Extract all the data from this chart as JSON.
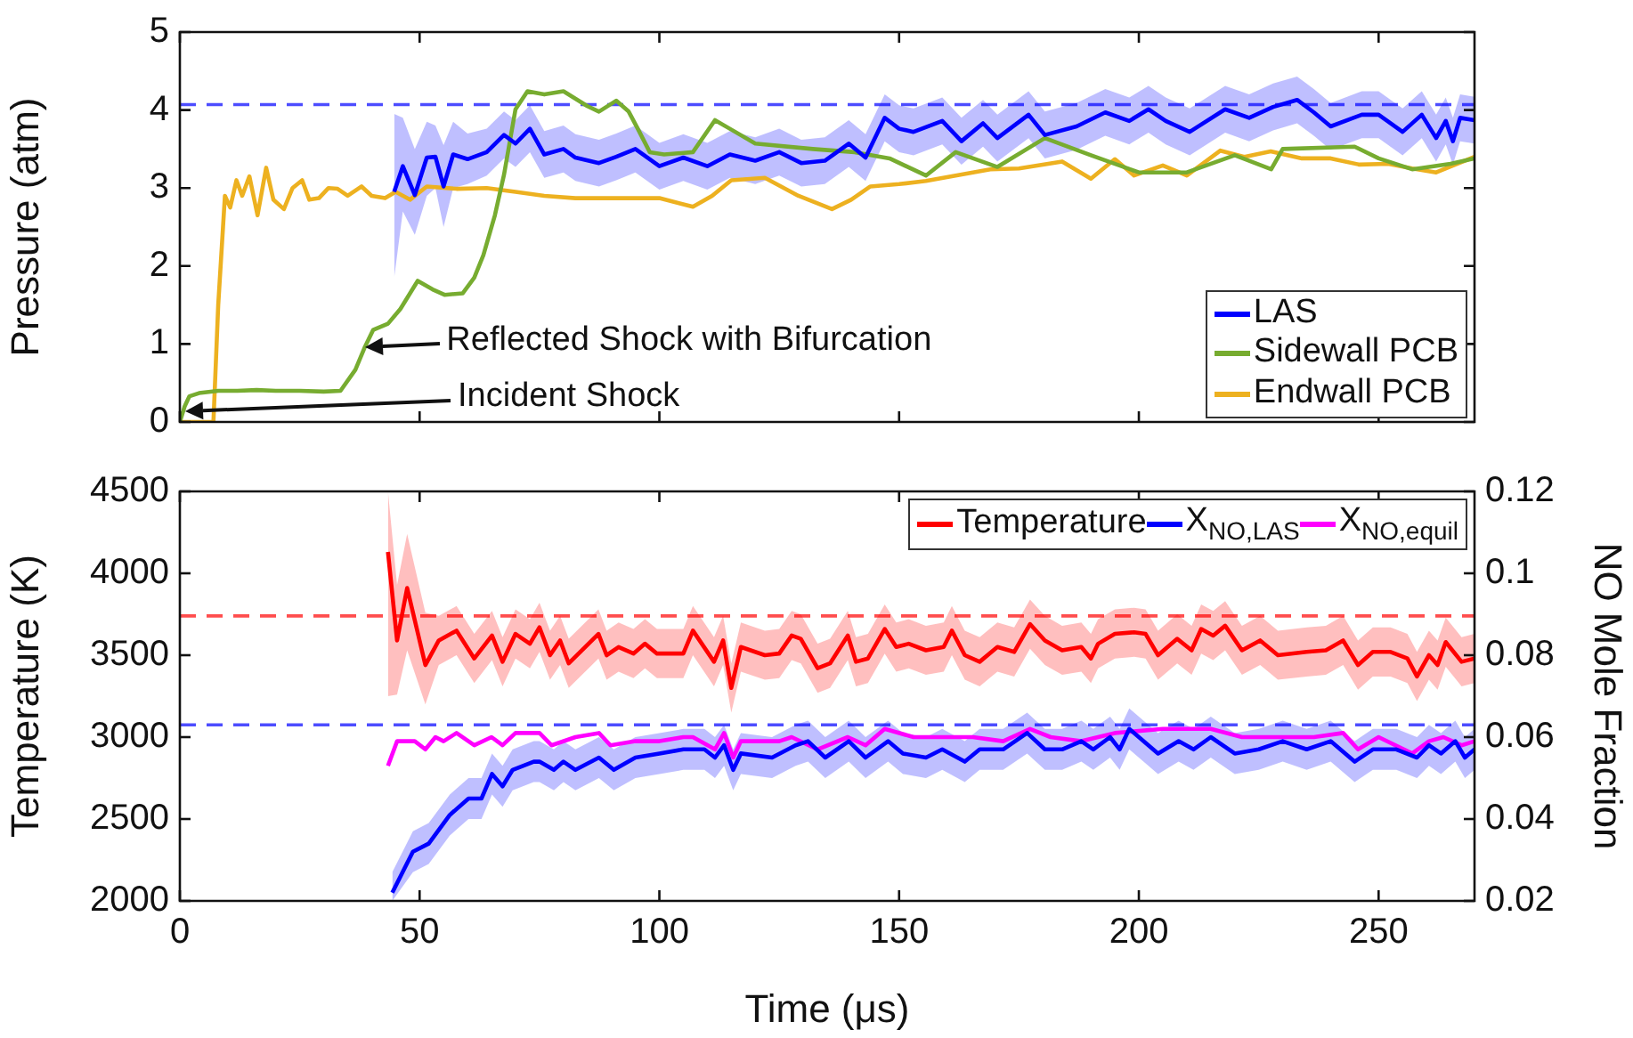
{
  "chart_data": [
    {
      "type": "line",
      "ylabel": "Pressure (atm)",
      "xlim": [
        0,
        270
      ],
      "xticks": [
        0,
        50,
        100,
        150,
        200,
        250
      ],
      "ylim": [
        0,
        5
      ],
      "yticks": [
        0,
        1,
        2,
        3,
        4,
        5
      ],
      "tick_labels": "y",
      "legend": "bottom right",
      "ref_lines": [
        {
          "axis": "y",
          "value": 4.07,
          "color": "#4d4dff",
          "line_style": "dashed"
        }
      ],
      "annotations": [
        {
          "text": "Reflected Shock with Bifurcation",
          "x": 38.5,
          "y": 0.95
        },
        "Incident Shock"
      ],
      "series": [
        {
          "name": "LAS",
          "color": "#0000ff",
          "x": [
            44.7,
            46.5,
            49,
            51.5,
            53.3,
            55,
            57,
            60,
            64,
            67.6,
            70,
            73,
            76,
            80,
            82.5,
            87.4,
            91,
            95,
            100,
            105,
            110,
            114.7,
            120,
            125,
            129.6,
            134.5,
            139.5,
            143,
            147,
            150,
            153,
            159,
            163,
            167.5,
            170.5,
            177,
            180.4,
            187,
            193,
            198,
            202,
            205.6,
            210.6,
            218,
            223,
            228,
            233,
            236.5,
            240,
            246.5,
            250,
            255,
            259,
            262,
            264,
            265.5,
            267,
            270
          ],
          "values": [
            2.95,
            3.28,
            2.91,
            3.39,
            3.4,
            3.02,
            3.43,
            3.37,
            3.46,
            3.68,
            3.57,
            3.76,
            3.43,
            3.5,
            3.39,
            3.32,
            3.4,
            3.5,
            3.28,
            3.39,
            3.28,
            3.43,
            3.35,
            3.46,
            3.32,
            3.35,
            3.57,
            3.39,
            3.9,
            3.76,
            3.72,
            3.86,
            3.6,
            3.83,
            3.64,
            3.94,
            3.68,
            3.79,
            3.97,
            3.86,
            4.01,
            3.86,
            3.72,
            4.01,
            3.9,
            4.04,
            4.13,
            3.97,
            3.79,
            3.94,
            3.94,
            3.72,
            3.94,
            3.64,
            3.86,
            3.6,
            3.9,
            3.87
          ],
          "lower": [
            1.85,
            2.7,
            2.4,
            2.9,
            3.0,
            2.5,
            3.0,
            3.05,
            3.16,
            3.38,
            3.27,
            3.46,
            3.13,
            3.2,
            3.09,
            3.02,
            3.1,
            3.2,
            2.98,
            3.09,
            2.98,
            3.13,
            3.05,
            3.16,
            3.02,
            3.05,
            3.27,
            3.09,
            3.6,
            3.46,
            3.42,
            3.56,
            3.3,
            3.53,
            3.34,
            3.64,
            3.38,
            3.49,
            3.67,
            3.56,
            3.71,
            3.56,
            3.42,
            3.71,
            3.6,
            3.74,
            3.83,
            3.67,
            3.49,
            3.64,
            3.64,
            3.42,
            3.64,
            3.34,
            3.56,
            3.3,
            3.6,
            3.57
          ],
          "upper": [
            3.95,
            3.9,
            3.5,
            3.85,
            3.8,
            3.55,
            3.85,
            3.7,
            3.76,
            3.98,
            3.87,
            4.06,
            3.73,
            3.8,
            3.69,
            3.62,
            3.7,
            3.8,
            3.58,
            3.69,
            3.58,
            3.73,
            3.65,
            3.76,
            3.62,
            3.65,
            3.87,
            3.69,
            4.2,
            4.06,
            4.02,
            4.16,
            3.9,
            4.13,
            3.94,
            4.24,
            3.98,
            4.09,
            4.27,
            4.16,
            4.31,
            4.16,
            4.02,
            4.31,
            4.2,
            4.34,
            4.43,
            4.27,
            4.09,
            4.24,
            4.24,
            4.02,
            4.24,
            3.94,
            4.16,
            3.9,
            4.2,
            4.17
          ]
        },
        {
          "name": "Sidewall PCB",
          "color": "#77ac30",
          "x": [
            0,
            1,
            2,
            4,
            8,
            12,
            16,
            20,
            25,
            30,
            33.5,
            36.6,
            38.5,
            40.3,
            43.4,
            46,
            47.8,
            49.6,
            52.7,
            55.2,
            59,
            61.4,
            63.3,
            65.7,
            67.6,
            70,
            72.5,
            76,
            80,
            85,
            87.4,
            91,
            93.6,
            95.5,
            98,
            101,
            107,
            111.6,
            114.7,
            120,
            132,
            140.7,
            148,
            155.6,
            161.8,
            170.5,
            180.4,
            190,
            200,
            210,
            220,
            227.6,
            230,
            245,
            250,
            257,
            265,
            270
          ],
          "values": [
            0,
            0.2,
            0.33,
            0.37,
            0.4,
            0.4,
            0.41,
            0.4,
            0.4,
            0.39,
            0.4,
            0.67,
            0.95,
            1.18,
            1.26,
            1.45,
            1.63,
            1.81,
            1.7,
            1.63,
            1.65,
            1.85,
            2.14,
            2.65,
            3.17,
            4.01,
            4.24,
            4.2,
            4.24,
            4.05,
            3.98,
            4.12,
            3.98,
            3.76,
            3.46,
            3.43,
            3.46,
            3.87,
            3.76,
            3.57,
            3.5,
            3.46,
            3.38,
            3.16,
            3.46,
            3.27,
            3.64,
            3.42,
            3.2,
            3.2,
            3.42,
            3.24,
            3.5,
            3.53,
            3.38,
            3.24,
            3.31,
            3.38
          ]
        },
        {
          "name": "Endwall PCB",
          "color": "#edb120",
          "x": [
            0,
            7,
            8,
            9.4,
            10.5,
            11.8,
            13,
            14.5,
            16.2,
            18,
            19.5,
            21.7,
            23.5,
            25.5,
            27,
            29,
            31,
            32.9,
            35,
            37.9,
            40,
            42.8,
            45,
            48,
            51.5,
            57.7,
            64,
            70,
            76,
            82.5,
            91,
            100,
            107,
            111,
            115,
            122,
            129,
            136,
            140,
            144,
            150,
            155.6,
            161,
            169,
            175,
            184,
            190,
            195,
            199,
            205,
            210,
            217,
            222,
            227.5,
            234,
            240,
            246,
            252,
            257,
            262,
            266,
            270
          ],
          "values": [
            0,
            0,
            1.5,
            2.9,
            2.75,
            3.1,
            2.9,
            3.15,
            2.65,
            3.26,
            2.85,
            2.73,
            3.0,
            3.1,
            2.85,
            2.87,
            3.0,
            2.99,
            2.9,
            3.02,
            2.9,
            2.87,
            2.95,
            2.85,
            3.02,
            2.99,
            3.0,
            2.95,
            2.9,
            2.87,
            2.87,
            2.87,
            2.76,
            2.9,
            3.1,
            3.13,
            2.9,
            2.73,
            2.85,
            3.02,
            3.05,
            3.09,
            3.15,
            3.24,
            3.25,
            3.34,
            3.12,
            3.37,
            3.16,
            3.29,
            3.16,
            3.48,
            3.4,
            3.47,
            3.38,
            3.38,
            3.3,
            3.31,
            3.25,
            3.2,
            3.3,
            3.4
          ]
        }
      ]
    },
    {
      "type": "line",
      "xlabel": "Time (μs)",
      "ylabel": "Temperature (K)",
      "y2label": "NO Mole Fraction",
      "xlim": [
        0,
        270
      ],
      "xticks": [
        0,
        50,
        100,
        150,
        200,
        250
      ],
      "ylim": [
        2000,
        4500
      ],
      "yticks": [
        2000,
        2500,
        3000,
        3500,
        4000,
        4500
      ],
      "y2lim": [
        0.02,
        0.12
      ],
      "y2ticks": [
        0.02,
        0.04,
        0.06,
        0.08,
        0.1,
        0.12
      ],
      "legend": "top right",
      "ref_lines": [
        {
          "axis": "y",
          "value": 3740,
          "color": "#ff4d4d",
          "line_style": "dashed"
        },
        {
          "axis": "y2",
          "value": 0.063,
          "color": "#4d4dff",
          "line_style": "dashed"
        }
      ],
      "series": [
        {
          "name": "Temperature",
          "color": "#ff0000",
          "x": [
            43.4,
            45.3,
            47.4,
            51.2,
            54,
            57.7,
            61.4,
            65.1,
            67.3,
            70,
            73,
            75,
            77.2,
            79.3,
            81.1,
            87.3,
            89,
            91.5,
            94.6,
            97,
            99.5,
            105,
            107,
            111.4,
            113.3,
            115,
            117,
            122,
            125,
            127.6,
            129.5,
            133,
            135.6,
            139.3,
            141,
            143.5,
            147,
            149.4,
            152,
            155.6,
            159.3,
            161,
            163.7,
            166.8,
            170.5,
            174,
            177.3,
            180.4,
            184,
            188,
            190,
            191.5,
            195,
            199,
            201.4,
            204,
            208,
            211,
            213,
            215.5,
            218,
            221.5,
            225.3,
            229,
            235,
            239,
            242.6,
            245.7,
            248.8,
            252.5,
            256,
            258,
            260.5,
            262.3,
            264,
            267.3,
            270
          ],
          "values": [
            4130,
            3590,
            3910,
            3440,
            3590,
            3650,
            3480,
            3620,
            3460,
            3630,
            3570,
            3670,
            3500,
            3590,
            3450,
            3630,
            3500,
            3550,
            3510,
            3570,
            3510,
            3510,
            3650,
            3460,
            3590,
            3300,
            3550,
            3500,
            3510,
            3620,
            3600,
            3420,
            3450,
            3620,
            3460,
            3480,
            3660,
            3550,
            3570,
            3530,
            3550,
            3650,
            3500,
            3460,
            3550,
            3520,
            3690,
            3590,
            3530,
            3550,
            3480,
            3570,
            3630,
            3640,
            3630,
            3500,
            3600,
            3530,
            3660,
            3620,
            3680,
            3530,
            3590,
            3500,
            3520,
            3530,
            3590,
            3440,
            3520,
            3520,
            3480,
            3370,
            3500,
            3440,
            3580,
            3460,
            3480
          ],
          "lower": [
            3250,
            3260,
            3530,
            3200,
            3440,
            3500,
            3330,
            3470,
            3310,
            3480,
            3420,
            3520,
            3350,
            3440,
            3300,
            3480,
            3350,
            3400,
            3360,
            3420,
            3360,
            3360,
            3500,
            3310,
            3440,
            3150,
            3400,
            3350,
            3360,
            3470,
            3450,
            3270,
            3300,
            3470,
            3310,
            3330,
            3510,
            3400,
            3420,
            3380,
            3400,
            3500,
            3350,
            3310,
            3400,
            3370,
            3540,
            3440,
            3380,
            3400,
            3330,
            3420,
            3480,
            3490,
            3480,
            3350,
            3450,
            3380,
            3510,
            3470,
            3530,
            3380,
            3440,
            3350,
            3370,
            3380,
            3440,
            3290,
            3370,
            3370,
            3330,
            3220,
            3350,
            3290,
            3430,
            3310,
            3330
          ],
          "upper": [
            4500,
            3930,
            4240,
            3760,
            3740,
            3800,
            3630,
            3770,
            3610,
            3780,
            3720,
            3820,
            3650,
            3740,
            3600,
            3780,
            3650,
            3700,
            3660,
            3720,
            3660,
            3660,
            3800,
            3610,
            3740,
            3450,
            3700,
            3650,
            3660,
            3770,
            3750,
            3570,
            3600,
            3770,
            3610,
            3630,
            3810,
            3700,
            3720,
            3680,
            3700,
            3800,
            3650,
            3610,
            3700,
            3670,
            3840,
            3740,
            3680,
            3700,
            3630,
            3720,
            3780,
            3790,
            3780,
            3650,
            3750,
            3680,
            3810,
            3770,
            3830,
            3680,
            3740,
            3650,
            3670,
            3680,
            3740,
            3590,
            3670,
            3670,
            3630,
            3520,
            3650,
            3590,
            3730,
            3610,
            3630
          ]
        },
        {
          "name": "X$_{NO,LAS}$",
          "color": "#0000ff",
          "axis": "y2",
          "x": [
            44.3,
            48.6,
            51.9,
            56.3,
            60.2,
            62.9,
            65.1,
            67.3,
            69.4,
            73.8,
            75,
            78,
            80,
            82.5,
            87.4,
            90.5,
            95,
            100,
            105,
            109.4,
            111.6,
            113.5,
            115.4,
            117,
            123.5,
            128.4,
            131,
            134.6,
            139.5,
            143,
            147.7,
            150.8,
            155.6,
            159,
            163.7,
            166.8,
            171.7,
            176.7,
            180.4,
            184,
            188,
            190.5,
            194,
            196,
            198,
            204,
            208.3,
            211.4,
            215,
            220,
            225,
            230,
            235,
            240,
            245,
            248.8,
            253.7,
            258,
            260.5,
            263,
            266,
            268,
            270
          ],
          "values": [
            0.022,
            0.032,
            0.034,
            0.041,
            0.045,
            0.045,
            0.051,
            0.048,
            0.052,
            0.054,
            0.054,
            0.052,
            0.054,
            0.052,
            0.055,
            0.052,
            0.055,
            0.056,
            0.057,
            0.057,
            0.055,
            0.058,
            0.052,
            0.056,
            0.055,
            0.058,
            0.059,
            0.055,
            0.059,
            0.055,
            0.059,
            0.056,
            0.055,
            0.057,
            0.054,
            0.057,
            0.057,
            0.061,
            0.057,
            0.057,
            0.059,
            0.057,
            0.06,
            0.057,
            0.062,
            0.056,
            0.059,
            0.057,
            0.06,
            0.056,
            0.057,
            0.059,
            0.057,
            0.059,
            0.054,
            0.057,
            0.057,
            0.055,
            0.058,
            0.056,
            0.059,
            0.055,
            0.057
          ],
          "lower": [
            0.02,
            0.027,
            0.029,
            0.036,
            0.04,
            0.04,
            0.046,
            0.043,
            0.047,
            0.049,
            0.049,
            0.047,
            0.049,
            0.047,
            0.05,
            0.047,
            0.05,
            0.051,
            0.052,
            0.052,
            0.05,
            0.053,
            0.047,
            0.051,
            0.05,
            0.053,
            0.054,
            0.05,
            0.054,
            0.05,
            0.054,
            0.051,
            0.05,
            0.052,
            0.049,
            0.052,
            0.052,
            0.056,
            0.052,
            0.052,
            0.054,
            0.052,
            0.055,
            0.052,
            0.057,
            0.051,
            0.054,
            0.052,
            0.055,
            0.051,
            0.052,
            0.054,
            0.052,
            0.054,
            0.049,
            0.052,
            0.052,
            0.05,
            0.053,
            0.051,
            0.054,
            0.05,
            0.052
          ],
          "upper": [
            0.027,
            0.037,
            0.039,
            0.046,
            0.05,
            0.05,
            0.056,
            0.053,
            0.057,
            0.059,
            0.059,
            0.057,
            0.059,
            0.057,
            0.06,
            0.057,
            0.06,
            0.061,
            0.062,
            0.062,
            0.06,
            0.063,
            0.057,
            0.061,
            0.06,
            0.063,
            0.064,
            0.06,
            0.064,
            0.06,
            0.064,
            0.061,
            0.06,
            0.062,
            0.059,
            0.062,
            0.062,
            0.066,
            0.062,
            0.062,
            0.064,
            0.062,
            0.065,
            0.062,
            0.067,
            0.061,
            0.064,
            0.062,
            0.065,
            0.061,
            0.062,
            0.064,
            0.062,
            0.064,
            0.059,
            0.062,
            0.062,
            0.06,
            0.063,
            0.061,
            0.064,
            0.06,
            0.062
          ]
        },
        {
          "name": "X$_{NO,equil}$",
          "color": "#ff00ff",
          "axis": "y2",
          "x": [
            43.4,
            45.3,
            49,
            51.2,
            53.3,
            55,
            57.7,
            61.4,
            65,
            67.3,
            70,
            75,
            77.5,
            82.5,
            87.4,
            89.8,
            95,
            100,
            105,
            107,
            111.6,
            113.5,
            115.4,
            117,
            125,
            127.6,
            133,
            139.3,
            143,
            147,
            153,
            160.4,
            165.4,
            171.7,
            177.3,
            181.6,
            188,
            195,
            205,
            215,
            221.5,
            227.6,
            236.5,
            242.6,
            245.7,
            250,
            257,
            260.5,
            263.5,
            267.3,
            270
          ],
          "values": [
            0.053,
            0.059,
            0.059,
            0.057,
            0.06,
            0.059,
            0.061,
            0.058,
            0.06,
            0.058,
            0.061,
            0.061,
            0.058,
            0.06,
            0.061,
            0.058,
            0.059,
            0.059,
            0.06,
            0.06,
            0.057,
            0.061,
            0.055,
            0.059,
            0.059,
            0.06,
            0.057,
            0.06,
            0.058,
            0.062,
            0.06,
            0.06,
            0.06,
            0.059,
            0.062,
            0.06,
            0.059,
            0.061,
            0.062,
            0.062,
            0.06,
            0.06,
            0.06,
            0.061,
            0.057,
            0.06,
            0.056,
            0.059,
            0.06,
            0.058,
            0.059
          ]
        }
      ]
    }
  ]
}
